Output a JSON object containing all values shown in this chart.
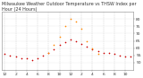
{
  "title": "Milwaukee Weather Outdoor Temperature vs THSW Index per Hour (24 Hours)",
  "hours": [
    0,
    1,
    2,
    3,
    4,
    5,
    6,
    7,
    8,
    9,
    10,
    11,
    12,
    13,
    14,
    15,
    16,
    17,
    18,
    19,
    20,
    21,
    22,
    23
  ],
  "temp": [
    56,
    55,
    54,
    53,
    53,
    52,
    53,
    55,
    57,
    59,
    62,
    64,
    66,
    65,
    63,
    61,
    59,
    58,
    57,
    57,
    56,
    55,
    54,
    54
  ],
  "thsw": [
    null,
    null,
    null,
    null,
    null,
    null,
    null,
    null,
    57,
    62,
    68,
    75,
    80,
    78,
    73,
    65,
    60,
    56,
    null,
    null,
    null,
    null,
    null,
    null
  ],
  "temp_color": "#cc0000",
  "thsw_color": "#ff8800",
  "bg_color": "#ffffff",
  "plot_bg": "#ffffff",
  "grid_color": "#c8c8c8",
  "border_color": "#888888",
  "ylim_min": 45,
  "ylim_max": 85,
  "ytick_values": [
    50,
    55,
    60,
    65,
    70,
    75,
    80
  ],
  "xlabel_fontsize": 3.2,
  "ylabel_fontsize": 3.2,
  "title_fontsize": 3.5,
  "marker_size": 1.2,
  "linewidth": 0.3
}
